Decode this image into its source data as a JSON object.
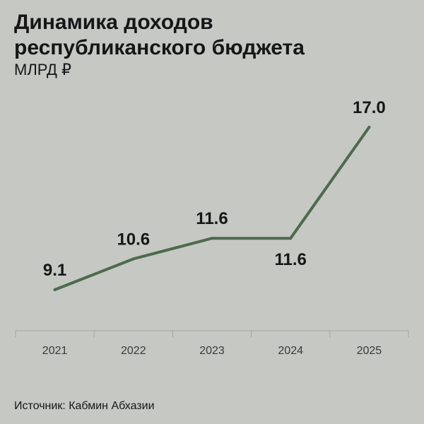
{
  "title_lines": [
    "Динамика доходов",
    "республиканского бюджета"
  ],
  "unit": "МЛРД ₽",
  "source": "Источник: Кабмин Абхазии",
  "colors": {
    "line": "#4d6a4d",
    "background": "#c6c8c4",
    "axis": "#a6a8a4",
    "text": "#161616"
  },
  "chart_data": {
    "type": "line",
    "categories": [
      "2021",
      "2022",
      "2023",
      "2024",
      "2025"
    ],
    "series": [
      {
        "values": [
          9.1,
          10.6,
          11.6,
          11.6,
          17.0
        ]
      }
    ],
    "data_labels": [
      "9.1",
      "10.6",
      "11.6",
      "11.6",
      "17.0"
    ],
    "label_position": [
      "above",
      "above",
      "above",
      "below",
      "above"
    ],
    "title": "Динамика доходов республиканского бюджета",
    "ylabel": "МЛРД ₽",
    "xlabel": "",
    "ylim": [
      0,
      18
    ],
    "grid": false,
    "legend": "none"
  }
}
